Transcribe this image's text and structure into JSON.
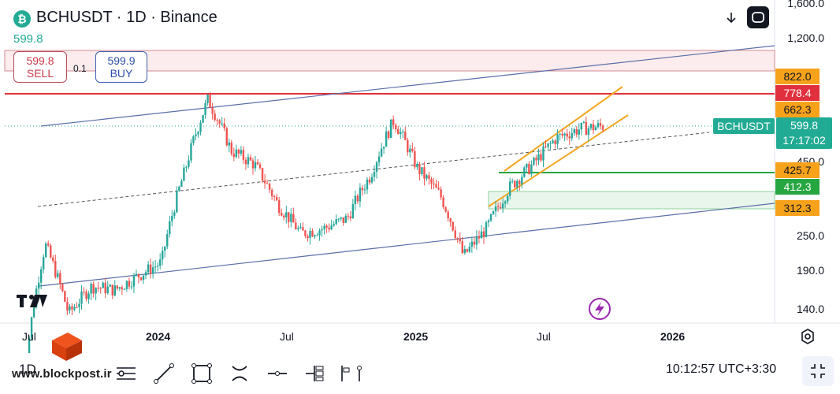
{
  "header": {
    "title": "BCHUSDT · 1D · Binance",
    "last_price": "599.8"
  },
  "trade": {
    "sell_price": "599.8",
    "sell_label": "SELL",
    "buy_price": "599.9",
    "buy_label": "BUY",
    "spread": "0.1"
  },
  "price_axis": {
    "ticks": [
      "1,600.0",
      "1,200.0",
      "450.0",
      "250.0",
      "190.0",
      "140.0"
    ],
    "price_labels": [
      {
        "value": "822.0",
        "color": "#f7a21b"
      },
      {
        "value": "778.4",
        "color": "#e0303d"
      },
      {
        "value": "662.3",
        "color": "#f7a21b"
      },
      {
        "value": "425.7",
        "color": "#f7a21b"
      },
      {
        "value": "412.3",
        "color": "#26a641"
      },
      {
        "value": "312.3",
        "color": "#f7a21b"
      }
    ],
    "symbol_label": "BCHUSDT",
    "current_price": "599.8",
    "countdown": "17:17:02"
  },
  "time_axis": {
    "ticks": [
      "Jul",
      "2024",
      "Jul",
      "2025",
      "Jul",
      "2026"
    ]
  },
  "bottom_bar": {
    "interval": "1D",
    "clock": "10:12:57 UTC+3:30",
    "tools": [
      "cursor-icon",
      "trend-line-icon",
      "rectangle-icon",
      "fib-icon",
      "horizontal-line-icon",
      "long-position-icon",
      "pitchfork-icon"
    ]
  },
  "watermark": "www.blockpost.ir",
  "colors": {
    "up": "#26a69a",
    "down": "#ef5350",
    "accent": "#22ab94",
    "resistance": "#e0303d",
    "channel": "#f5a623"
  },
  "chart_data": {
    "type": "candlestick",
    "title": "BCHUSDT · 1D · Binance",
    "x_ticks": [
      "Jul",
      "2024",
      "Jul",
      "2025",
      "Jul",
      "2026"
    ],
    "y_ticks": [
      1600,
      1200,
      822,
      778.4,
      662.3,
      599.8,
      450,
      425.7,
      412.3,
      312.3,
      250,
      190,
      140
    ],
    "y_scale": "log",
    "close_path": [
      {
        "x": "Jul 2023",
        "y": 120
      },
      {
        "x": "Jul 2023",
        "y": 300
      },
      {
        "x": "Aug 2023",
        "y": 200
      },
      {
        "x": "Oct 2023",
        "y": 235
      },
      {
        "x": "Dec 2023",
        "y": 230
      },
      {
        "x": "Jan 2024",
        "y": 250
      },
      {
        "x": "Feb 2024",
        "y": 270
      },
      {
        "x": "Mar 2024",
        "y": 460
      },
      {
        "x": "Apr 2024",
        "y": 700
      },
      {
        "x": "May 2024",
        "y": 520
      },
      {
        "x": "Jun 2024",
        "y": 480
      },
      {
        "x": "Jul 2024",
        "y": 380
      },
      {
        "x": "Aug 2024",
        "y": 320
      },
      {
        "x": "Sep 2024",
        "y": 330
      },
      {
        "x": "Oct 2024",
        "y": 350
      },
      {
        "x": "Nov 2024",
        "y": 450
      },
      {
        "x": "Dec 2024",
        "y": 620
      },
      {
        "x": "Jan 2025",
        "y": 470
      },
      {
        "x": "Feb 2025",
        "y": 400
      },
      {
        "x": "Mar 2025",
        "y": 280
      },
      {
        "x": "Apr 2025",
        "y": 330
      },
      {
        "x": "May 2025",
        "y": 420
      },
      {
        "x": "Jun 2025",
        "y": 480
      },
      {
        "x": "Jul 2025",
        "y": 560
      },
      {
        "x": "Aug 2025",
        "y": 590
      },
      {
        "x": "Sep 2025",
        "y": 599.8
      }
    ],
    "horizontal_levels": [
      822.0,
      778.4,
      662.3,
      425.7,
      412.3,
      312.3
    ],
    "last": 599.8
  }
}
